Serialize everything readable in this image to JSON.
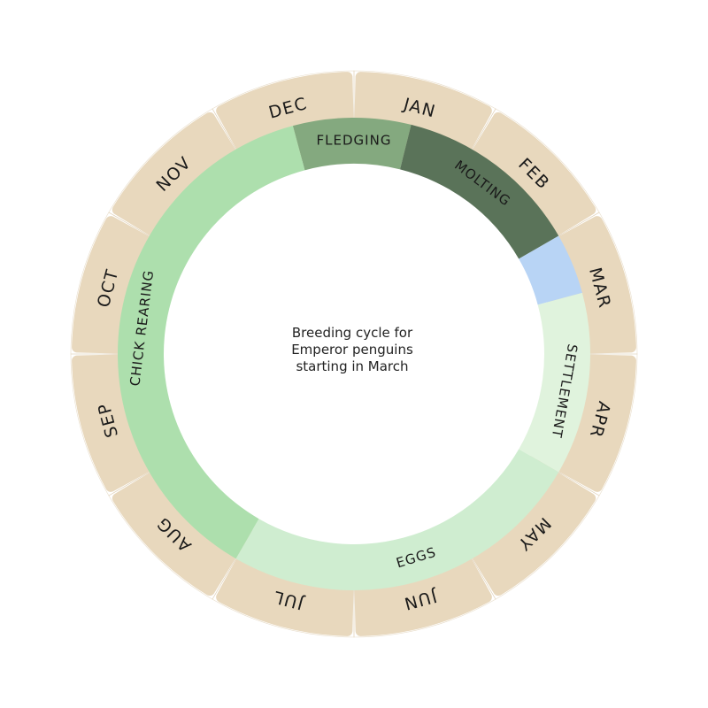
{
  "center_text": [
    "Breeding cycle for",
    "Emperor penguins",
    "starting in March"
  ],
  "months": [
    "JAN",
    "FEB",
    "MAR",
    "APR",
    "MAY",
    "JUN",
    "JUL",
    "AUG",
    "SEP",
    "OCT",
    "NOV",
    "DEC"
  ],
  "phases": [
    {
      "label": "FLEDGING",
      "color": "#84a97f"
    },
    {
      "label": "MOLTING",
      "color": "#5a7359"
    },
    {
      "label": null,
      "color": "#b8d4f5"
    },
    {
      "label": "SETTLEMENT",
      "color": "#e0f3dd"
    },
    {
      "label": "EGGS",
      "color": "#cfedd0"
    },
    {
      "label": "CHICK REARING",
      "color": "#addfad"
    }
  ]
}
